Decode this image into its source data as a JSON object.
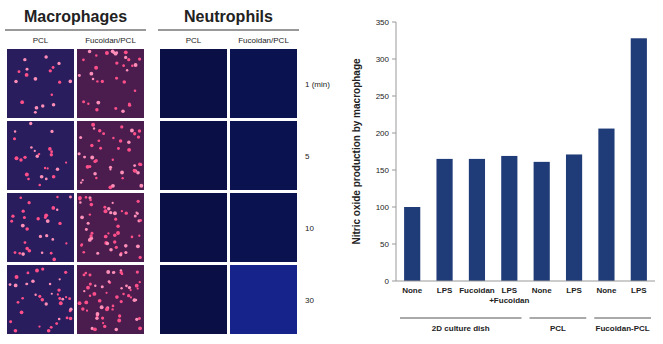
{
  "panels": {
    "groups": [
      {
        "title": "Macrophages",
        "columns": [
          "PCL",
          "Fucoidan/PCL"
        ]
      },
      {
        "title": "Neutrophils",
        "columns": [
          "PCL",
          "Fucoidan/PCL"
        ]
      }
    ],
    "row_labels": [
      "1 (min)",
      "5",
      "10",
      "30"
    ]
  },
  "chart_data": {
    "type": "bar",
    "y_label": "Nitric oxide production by macrophage",
    "categories": [
      "None",
      "LPS",
      "Fucoidan",
      "LPS\n+Fucoidan",
      "None",
      "LPS",
      "None",
      "LPS"
    ],
    "values": [
      100,
      165,
      165,
      169,
      161,
      171,
      206,
      328
    ],
    "groups": [
      {
        "name": "2D culture dish",
        "count": 4
      },
      {
        "name": "PCL",
        "count": 2
      },
      {
        "name": "Fucoidan-PCL",
        "count": 2
      }
    ],
    "color": "#203c78",
    "ylim": [
      0,
      350
    ],
    "yticks": [
      0,
      50,
      100,
      150,
      200,
      250,
      300,
      350
    ],
    "grid": false
  }
}
